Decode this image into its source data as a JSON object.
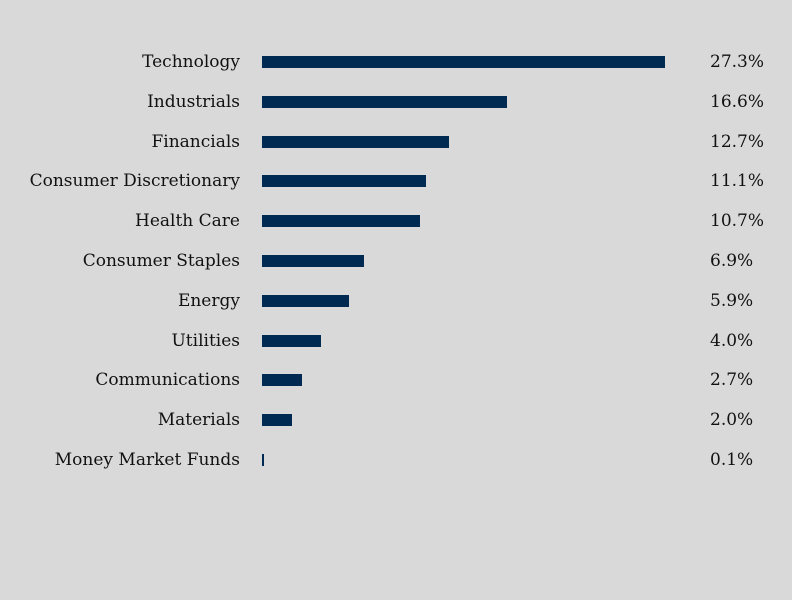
{
  "chart_data": {
    "type": "bar",
    "orientation": "horizontal",
    "categories": [
      "Technology",
      "Industrials",
      "Financials",
      "Consumer Discretionary",
      "Health Care",
      "Consumer Staples",
      "Energy",
      "Utilities",
      "Communications",
      "Materials",
      "Money Market Funds"
    ],
    "values": [
      27.3,
      16.6,
      12.7,
      11.1,
      10.7,
      6.9,
      5.9,
      4.0,
      2.7,
      2.0,
      0.1
    ],
    "value_labels": [
      "27.3%",
      "16.6%",
      "12.7%",
      "11.1%",
      "10.7%",
      "6.9%",
      "5.9%",
      "4.0%",
      "2.7%",
      "2.0%",
      "0.1%"
    ],
    "xlim": [
      0,
      27.3
    ],
    "grid": false,
    "legend": "none",
    "colors": {
      "bar": "#002a52",
      "background": "#d9d9d9"
    }
  }
}
